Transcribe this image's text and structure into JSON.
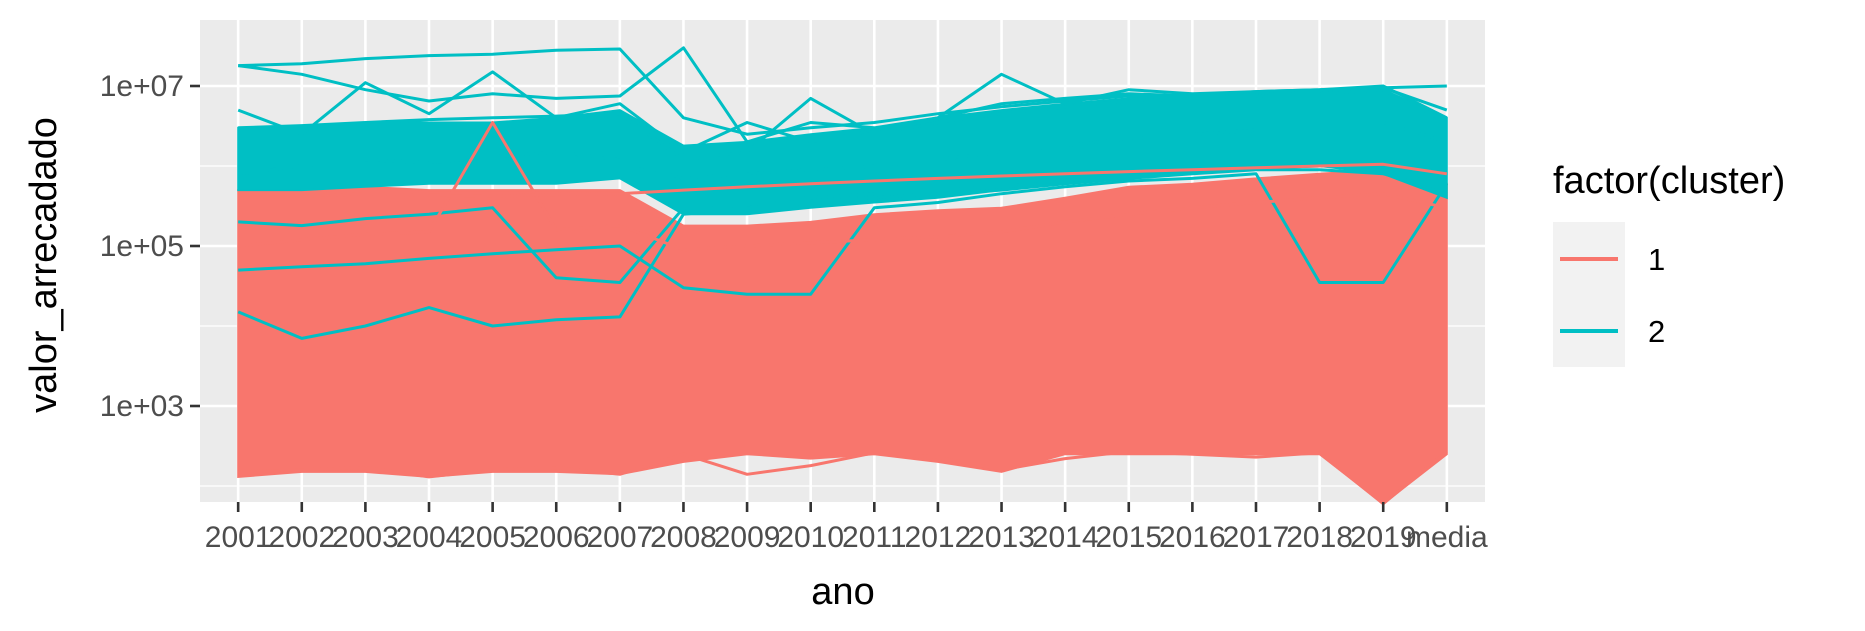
{
  "chart_data": {
    "type": "line",
    "xlabel": "ano",
    "ylabel": "valor_arrecadado",
    "y_scale": "log10",
    "ylim": [
      50,
      30000000
    ],
    "categories": [
      "2001",
      "2002",
      "2003",
      "2004",
      "2005",
      "2006",
      "2007",
      "2008",
      "2009",
      "2010",
      "2011",
      "2012",
      "2013",
      "2014",
      "2015",
      "2016",
      "2017",
      "2018",
      "2019",
      "media"
    ],
    "y_ticks": [
      {
        "value": 1000,
        "label": "1e+03"
      },
      {
        "value": 100000,
        "label": "1e+05"
      },
      {
        "value": 10000000,
        "label": "1e+07"
      }
    ],
    "grid": true,
    "legend": {
      "title": "factor(cluster)",
      "position": "right",
      "entries": [
        {
          "label": "1",
          "color": "#F8766D"
        },
        {
          "label": "2",
          "color": "#00BFC4"
        }
      ]
    },
    "cluster1_envelope": {
      "upper": [
        500000,
        500000,
        550000,
        500000,
        500000,
        500000,
        500000,
        180000,
        180000,
        200000,
        250000,
        280000,
        300000,
        400000,
        550000,
        600000,
        700000,
        800000,
        900000,
        600000
      ],
      "lower": [
        130,
        150,
        150,
        130,
        150,
        150,
        140,
        200,
        250,
        220,
        250,
        200,
        150,
        250,
        250,
        250,
        250,
        250,
        60,
        250
      ]
    },
    "cluster2_envelope": {
      "upper": [
        3000000,
        3000000,
        3500000,
        3500000,
        3500000,
        4000000,
        5000000,
        1800000,
        2000000,
        2500000,
        3000000,
        4000000,
        5000000,
        6000000,
        7000000,
        7500000,
        8000000,
        8500000,
        9000000,
        4000000
      ],
      "lower": [
        500000,
        500000,
        550000,
        600000,
        600000,
        600000,
        700000,
        250000,
        250000,
        300000,
        350000,
        400000,
        500000,
        600000,
        700000,
        800000,
        900000,
        1000000,
        800000,
        400000
      ]
    },
    "series": [
      {
        "cluster": "2",
        "values": [
          18000000,
          19000000,
          22000000,
          24000000,
          25000000,
          28000000,
          29000000,
          4000000,
          2500000,
          3000000,
          3500000,
          4500000,
          5500000,
          6500000,
          7500000,
          7500000,
          8000000,
          8500000,
          9500000,
          5000000
        ]
      },
      {
        "cluster": "2",
        "values": [
          18000000,
          14000000,
          9000000,
          6500000,
          8000000,
          7000000,
          7500000,
          30000000,
          2000000,
          3500000,
          3000000,
          4000000,
          6000000,
          7000000,
          8000000,
          7500000,
          8500000,
          9000000,
          10000000,
          4000000
        ]
      },
      {
        "cluster": "2",
        "values": [
          5000000,
          2500000,
          11000000,
          4500000,
          15000000,
          4000000,
          6000000,
          1500000,
          3500000,
          2000000,
          2800000,
          4000000,
          14000000,
          6000000,
          9000000,
          8000000,
          8500000,
          9000000,
          9500000,
          10000000
        ]
      },
      {
        "cluster": "2",
        "values": [
          3000000,
          3200000,
          3500000,
          3800000,
          4000000,
          4200000,
          4500000,
          1200000,
          1500000,
          7000000,
          2500000,
          3500000,
          4500000,
          5500000,
          6500000,
          7000000,
          7500000,
          8000000,
          9000000,
          3500000
        ]
      },
      {
        "cluster": "2",
        "values": [
          15000,
          7000,
          10000,
          17000,
          10000,
          12000,
          13000,
          250000,
          300000,
          350000,
          400000,
          450000,
          500000,
          600000,
          700000,
          800000,
          900000,
          900000,
          800000,
          500000
        ]
      },
      {
        "cluster": "2",
        "values": [
          50000,
          55000,
          60000,
          70000,
          80000,
          90000,
          100000,
          30000,
          25000,
          25000,
          300000,
          350000,
          450000,
          550000,
          650000,
          700000,
          800000,
          35000,
          35000,
          600000
        ]
      },
      {
        "cluster": "2",
        "values": [
          200000,
          180000,
          220000,
          250000,
          300000,
          40000,
          35000,
          300000,
          350000,
          400000,
          450000,
          500000,
          550000,
          650000,
          750000,
          850000,
          950000,
          1000000,
          1100000,
          700000
        ]
      },
      {
        "cluster": "2",
        "values": [
          800000,
          1000000,
          1200000,
          1100000,
          1300000,
          1500000,
          1200000,
          700000,
          800000,
          900000,
          1000000,
          1200000,
          1500000,
          1800000,
          2200000,
          2500000,
          2800000,
          3000000,
          3500000,
          2000000
        ]
      },
      {
        "cluster": "1",
        "values": [
          100000,
          120000,
          140000,
          150000,
          3500000,
          160000,
          180000,
          90000,
          100000,
          110000,
          120000,
          130000,
          150000,
          200000,
          250000,
          300000,
          350000,
          400000,
          450000,
          300000
        ]
      },
      {
        "cluster": "1",
        "values": [
          400000,
          420000,
          450000,
          430000,
          420000,
          440000,
          450000,
          500000,
          550000,
          600000,
          650000,
          700000,
          750000,
          800000,
          850000,
          900000,
          950000,
          1000000,
          1050000,
          800000
        ]
      },
      {
        "cluster": "1",
        "values": [
          150,
          160,
          170,
          130,
          160,
          170,
          140,
          250,
          140,
          180,
          260,
          230,
          160,
          220,
          270,
          250,
          230,
          260,
          60,
          270
        ]
      }
    ]
  }
}
